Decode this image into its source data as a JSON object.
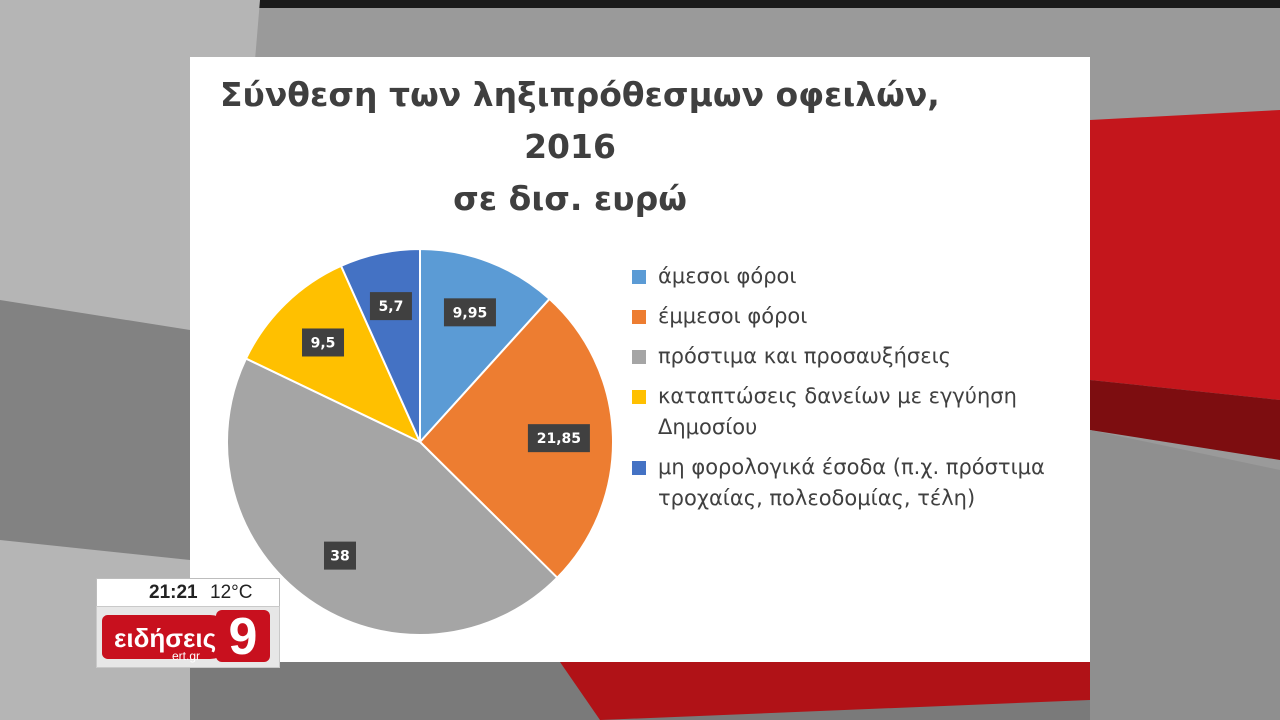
{
  "colors": {
    "direct": "#5b9bd5",
    "indirect": "#ed7d31",
    "fines": "#a5a5a5",
    "loans": "#ffc000",
    "nontax": "#4472c4",
    "label_bg": "#404040",
    "brand_red": "#c8101e"
  },
  "chart_data": {
    "type": "pie",
    "title_lines": [
      "Σύνθεση των ληξιπρόθεσμων οφειλών,",
      "2016",
      "σε δισ. ευρώ"
    ],
    "categories": [
      "άμεσοι φόροι",
      "έμμεσοι φόροι",
      "πρόστιμα και προσαυξήσεις",
      "καταπτώσεις δανείων με εγγύηση Δημοσίου",
      "μη φορολογικά έσοδα (π.χ. πρόστιμα τροχαίας, πολεοδομίας, τέλη)"
    ],
    "values": [
      9.95,
      21.85,
      38,
      9.5,
      5.7
    ],
    "value_labels": [
      "9,95",
      "21,85",
      "38",
      "9,5",
      "5,7"
    ],
    "legend_position": "right"
  },
  "broadcast": {
    "time": "21:21",
    "temperature": "12°C",
    "channel_name": "ειδήσεις",
    "channel_site": "ert.gr",
    "channel_number": "9"
  }
}
